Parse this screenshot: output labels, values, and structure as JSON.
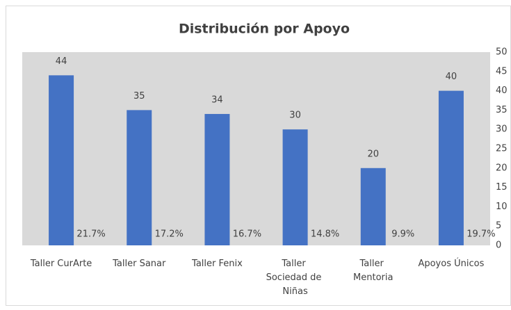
{
  "chart_data": {
    "type": "bar",
    "title": "Distribución por Apoyo",
    "categories": [
      "Taller CurArte",
      "Taller Sanar",
      "Taller Fenix",
      "Taller Sociedad de Niñas",
      "Taller Mentoria",
      "Apoyos Únicos"
    ],
    "values": [
      44,
      35,
      34,
      30,
      20,
      40
    ],
    "color": "#4472c4",
    "shares": [
      21.7,
      17.2,
      16.7,
      14.8,
      9.9,
      19.7
    ],
    "share_labels": [
      "21.7%",
      "17.2%",
      "16.7%",
      "14.8%",
      "9.9%",
      "19.7%"
    ],
    "ylim": [
      0,
      50
    ],
    "yticks": [
      0,
      5,
      10,
      15,
      20,
      25,
      30,
      35,
      40,
      45,
      50
    ],
    "grid": false
  }
}
